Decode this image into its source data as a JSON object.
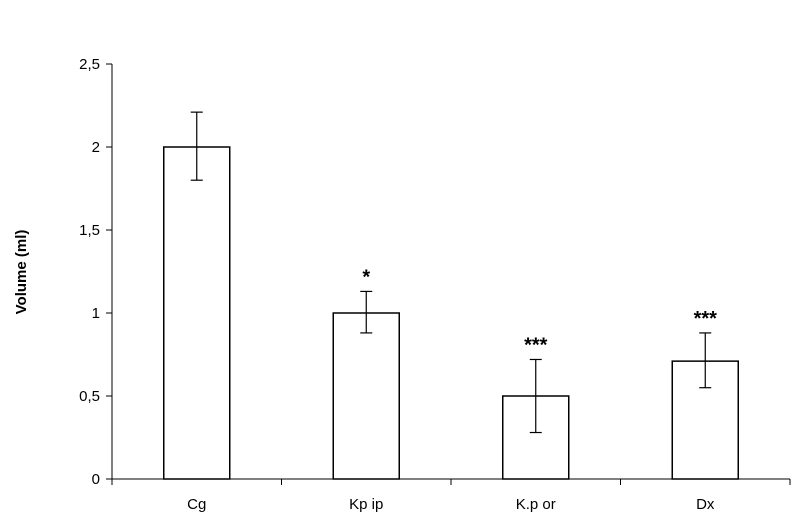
{
  "chart_data": {
    "type": "bar",
    "title": "",
    "xlabel": "",
    "ylabel": "Volume (ml)",
    "categories": [
      "Cg",
      "Kp ip",
      "K.p or",
      "Dx"
    ],
    "values": [
      2.0,
      1.0,
      0.5,
      0.71
    ],
    "error_low": [
      1.8,
      0.88,
      0.28,
      0.55
    ],
    "error_high": [
      2.21,
      1.13,
      0.72,
      0.88
    ],
    "significance": [
      "",
      "*",
      "***",
      "***"
    ],
    "ylim": [
      0,
      2.5
    ],
    "yticks": [
      0,
      0.5,
      1,
      1.5,
      2,
      2.5
    ],
    "ytick_labels": [
      "0",
      "0,5",
      "1",
      "1,5",
      "2",
      "2,5"
    ],
    "grid": false,
    "bar_fill": "#ffffff",
    "bar_stroke": "#000000"
  }
}
